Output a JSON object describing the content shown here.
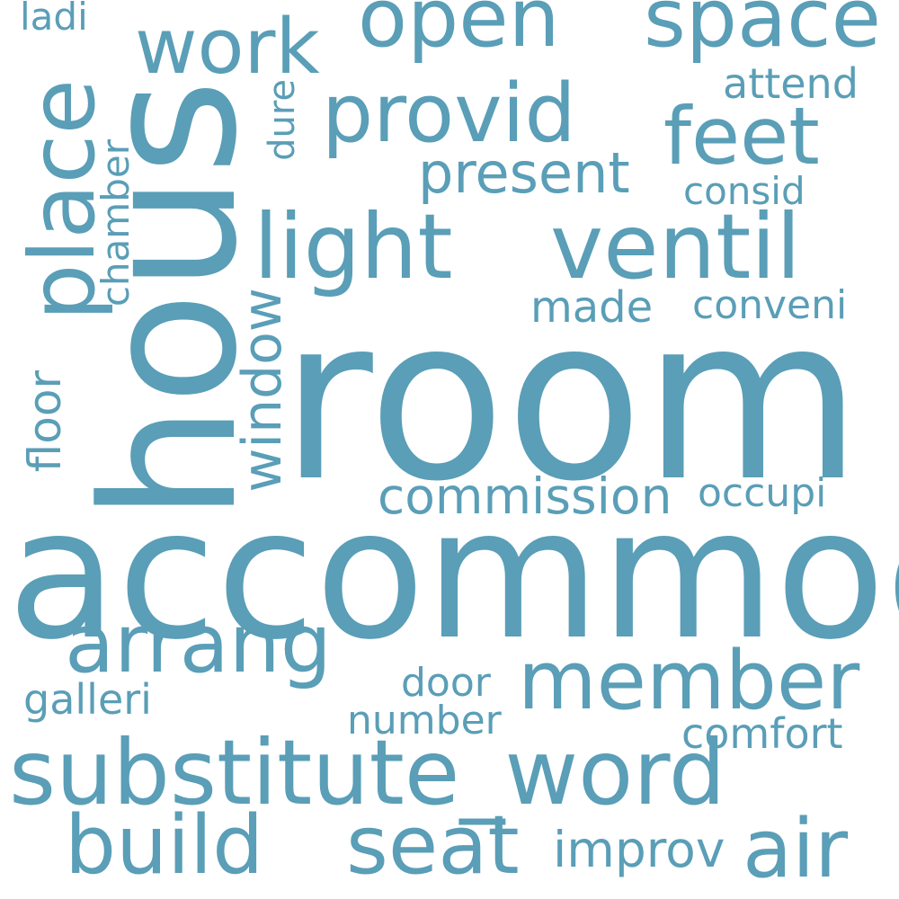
{
  "colors": {
    "word": "#5a9eb7",
    "background": "#ffffff"
  },
  "words": {
    "room": "room",
    "accommod": "accommod",
    "hous": "hous",
    "substitute_word": "substitute_word",
    "light": "light",
    "ventil": "ventil",
    "member": "member",
    "arrang": "arrang",
    "build": "build",
    "seat": "seat",
    "air": "air",
    "provid": "provid",
    "feet": "feet",
    "space": "space",
    "open": "open",
    "work": "work",
    "place": "place",
    "window": "window",
    "present": "present",
    "commission": "commission",
    "improv": "improv",
    "comfort": "comfort",
    "floor": "floor",
    "chamber": "chamber",
    "galleri": "galleri",
    "number": "number",
    "door": "door",
    "made": "made",
    "conveni": "conveni",
    "occupi": "occupi",
    "attend": "attend",
    "consid": "consid",
    "dure": "dure",
    "ladi": "ladi"
  }
}
